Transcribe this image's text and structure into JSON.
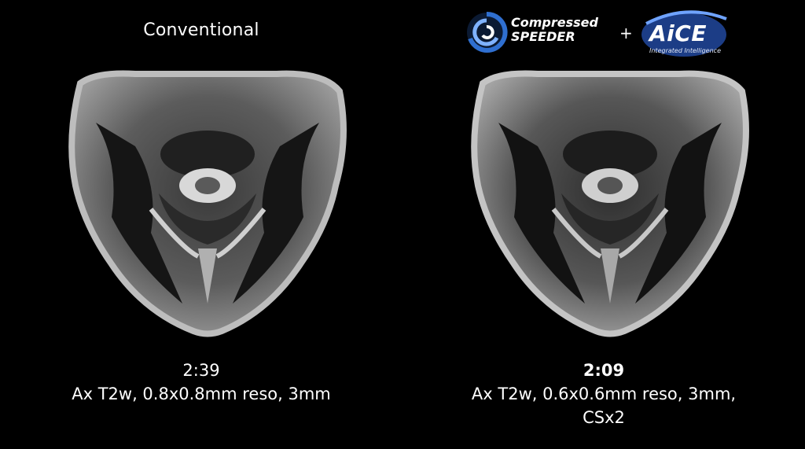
{
  "left": {
    "heading": "Conventional",
    "time": "2:39",
    "description": "Ax T2w, 0.8x0.8mm reso, 3mm"
  },
  "right": {
    "logos": {
      "compressed_line1": "Compressed",
      "compressed_line2": "SPEEDER",
      "plus": "+",
      "aice_wordmark": "AiCE",
      "aice_tagline": "Integrated Intelligence"
    },
    "time": "2:09",
    "description_line1": "Ax T2w, 0.6x0.6mm reso, 3mm,",
    "description_line2": "CSx2"
  },
  "colors": {
    "background": "#000000",
    "text": "#ffffff",
    "logo_blue": "#2f6fd0"
  }
}
